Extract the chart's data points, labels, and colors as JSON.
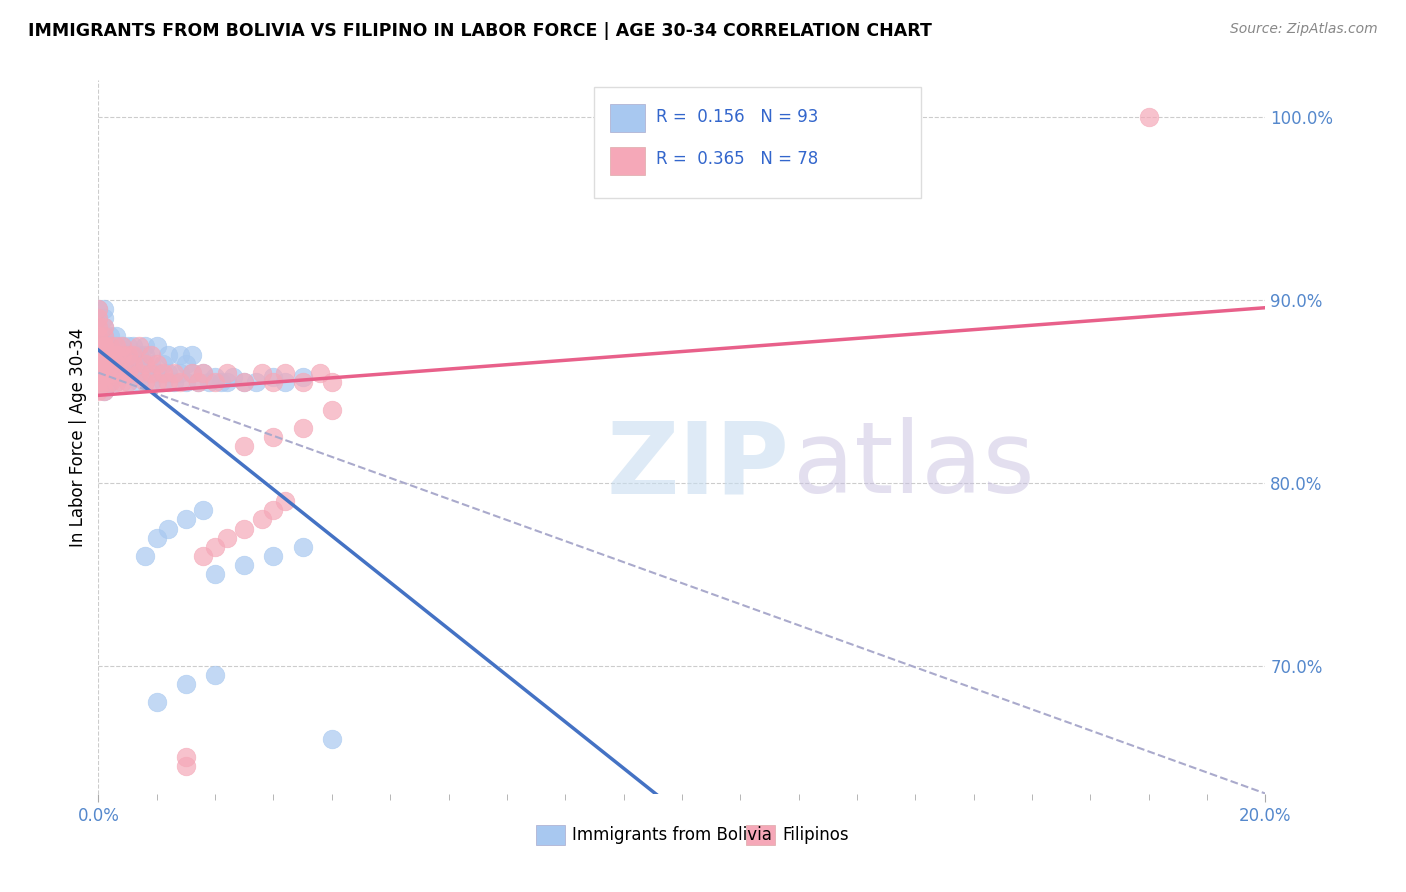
{
  "title": "IMMIGRANTS FROM BOLIVIA VS FILIPINO IN LABOR FORCE | AGE 30-34 CORRELATION CHART",
  "source": "Source: ZipAtlas.com",
  "ylabel": "In Labor Force | Age 30-34",
  "r_bolivia": 0.156,
  "n_bolivia": 93,
  "r_filipino": 0.365,
  "n_filipino": 78,
  "color_bolivia": "#a8c8f0",
  "color_filipino": "#f5a8b8",
  "trendline_bolivia": "#4472c4",
  "trendline_filipino": "#e8608a",
  "trendline_dashed_color": "#aaaacc",
  "legend_bolivia": "Immigrants from Bolivia",
  "legend_filipino": "Filipinos",
  "xlim": [
    0.0,
    0.2
  ],
  "ylim": [
    0.63,
    1.02
  ],
  "ytick_vals": [
    0.7,
    0.8,
    0.9,
    1.0
  ],
  "ytick_labels": [
    "70.0%",
    "80.0%",
    "90.0%",
    "100.0%"
  ],
  "bolivia_x": [
    0.0,
    0.0,
    0.0,
    0.0,
    0.0,
    0.0,
    0.0,
    0.0,
    0.0,
    0.0,
    0.0,
    0.0,
    0.001,
    0.001,
    0.001,
    0.001,
    0.001,
    0.001,
    0.001,
    0.001,
    0.001,
    0.001,
    0.001,
    0.001,
    0.002,
    0.002,
    0.002,
    0.002,
    0.002,
    0.002,
    0.003,
    0.003,
    0.003,
    0.003,
    0.003,
    0.003,
    0.004,
    0.004,
    0.004,
    0.004,
    0.005,
    0.005,
    0.005,
    0.005,
    0.006,
    0.006,
    0.006,
    0.007,
    0.007,
    0.007,
    0.008,
    0.008,
    0.008,
    0.009,
    0.009,
    0.01,
    0.01,
    0.011,
    0.011,
    0.012,
    0.012,
    0.013,
    0.014,
    0.014,
    0.015,
    0.015,
    0.016,
    0.016,
    0.017,
    0.018,
    0.019,
    0.02,
    0.021,
    0.022,
    0.023,
    0.025,
    0.027,
    0.03,
    0.032,
    0.035,
    0.008,
    0.01,
    0.012,
    0.015,
    0.018,
    0.02,
    0.025,
    0.03,
    0.035,
    0.04,
    0.01,
    0.015,
    0.02
  ],
  "bolivia_y": [
    0.875,
    0.88,
    0.87,
    0.885,
    0.89,
    0.895,
    0.86,
    0.865,
    0.87,
    0.875,
    0.855,
    0.86,
    0.875,
    0.88,
    0.865,
    0.87,
    0.885,
    0.855,
    0.86,
    0.89,
    0.895,
    0.875,
    0.87,
    0.85,
    0.875,
    0.88,
    0.865,
    0.87,
    0.855,
    0.86,
    0.875,
    0.865,
    0.87,
    0.855,
    0.88,
    0.86,
    0.87,
    0.875,
    0.86,
    0.865,
    0.87,
    0.875,
    0.855,
    0.86,
    0.865,
    0.875,
    0.86,
    0.87,
    0.855,
    0.865,
    0.86,
    0.87,
    0.875,
    0.855,
    0.865,
    0.86,
    0.875,
    0.855,
    0.865,
    0.86,
    0.87,
    0.855,
    0.86,
    0.87,
    0.855,
    0.865,
    0.86,
    0.87,
    0.855,
    0.86,
    0.855,
    0.858,
    0.855,
    0.855,
    0.858,
    0.855,
    0.855,
    0.858,
    0.855,
    0.858,
    0.76,
    0.77,
    0.775,
    0.78,
    0.785,
    0.75,
    0.755,
    0.76,
    0.765,
    0.66,
    0.68,
    0.69,
    0.695
  ],
  "filipino_x": [
    0.0,
    0.0,
    0.0,
    0.0,
    0.0,
    0.0,
    0.0,
    0.0,
    0.0,
    0.0,
    0.0,
    0.001,
    0.001,
    0.001,
    0.001,
    0.001,
    0.001,
    0.001,
    0.001,
    0.001,
    0.001,
    0.001,
    0.002,
    0.002,
    0.002,
    0.002,
    0.002,
    0.003,
    0.003,
    0.003,
    0.003,
    0.004,
    0.004,
    0.004,
    0.004,
    0.005,
    0.005,
    0.005,
    0.006,
    0.006,
    0.007,
    0.007,
    0.008,
    0.008,
    0.009,
    0.009,
    0.01,
    0.01,
    0.011,
    0.012,
    0.013,
    0.014,
    0.015,
    0.016,
    0.017,
    0.018,
    0.02,
    0.022,
    0.025,
    0.028,
    0.03,
    0.032,
    0.035,
    0.038,
    0.04,
    0.025,
    0.03,
    0.035,
    0.018,
    0.02,
    0.022,
    0.025,
    0.028,
    0.03,
    0.032,
    0.04,
    0.18,
    0.015
  ],
  "filipino_y": [
    0.88,
    0.885,
    0.89,
    0.895,
    0.87,
    0.875,
    0.855,
    0.86,
    0.865,
    0.87,
    0.85,
    0.875,
    0.88,
    0.865,
    0.87,
    0.855,
    0.885,
    0.875,
    0.86,
    0.87,
    0.85,
    0.865,
    0.875,
    0.865,
    0.855,
    0.87,
    0.86,
    0.87,
    0.875,
    0.855,
    0.865,
    0.86,
    0.87,
    0.855,
    0.875,
    0.86,
    0.87,
    0.855,
    0.865,
    0.87,
    0.86,
    0.875,
    0.855,
    0.865,
    0.86,
    0.87,
    0.855,
    0.865,
    0.86,
    0.855,
    0.86,
    0.855,
    0.645,
    0.86,
    0.855,
    0.86,
    0.855,
    0.86,
    0.855,
    0.86,
    0.855,
    0.86,
    0.855,
    0.86,
    0.855,
    0.82,
    0.825,
    0.83,
    0.76,
    0.765,
    0.77,
    0.775,
    0.78,
    0.785,
    0.79,
    0.84,
    1.0,
    0.65
  ]
}
